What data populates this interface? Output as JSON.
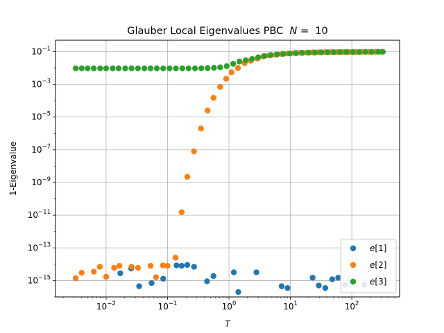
{
  "chart_data": {
    "type": "scatter",
    "title": "Glauber Local Eigenvalues PBC  N =  10",
    "title_parts": {
      "prefix": "Glauber Local Eigenvalues PBC  ",
      "var": "N",
      "suffix": " =  10"
    },
    "xlabel": "T",
    "ylabel": "1-Eigenvalue",
    "xscale": "log",
    "yscale": "log",
    "xlim": [
      0.0015,
      600
    ],
    "ylim": [
      1e-16,
      0.5
    ],
    "grid": true,
    "legend_placement": "lower right",
    "x_ticks": [
      {
        "value": 0.01,
        "base": "10",
        "exp": "−2"
      },
      {
        "value": 0.1,
        "base": "10",
        "exp": "−1"
      },
      {
        "value": 1,
        "base": "10",
        "exp": "0"
      },
      {
        "value": 10,
        "base": "10",
        "exp": "1"
      },
      {
        "value": 100,
        "base": "10",
        "exp": "2"
      }
    ],
    "y_ticks": [
      {
        "value": 1e-15,
        "base": "10",
        "exp": "−15"
      },
      {
        "value": 1e-13,
        "base": "10",
        "exp": "−13"
      },
      {
        "value": 1e-11,
        "base": "10",
        "exp": "−11"
      },
      {
        "value": 1e-09,
        "base": "10",
        "exp": "−9"
      },
      {
        "value": 1e-07,
        "base": "10",
        "exp": "−7"
      },
      {
        "value": 1e-05,
        "base": "10",
        "exp": "−5"
      },
      {
        "value": 0.001,
        "base": "10",
        "exp": "−3"
      },
      {
        "value": 0.1,
        "base": "10",
        "exp": "−1"
      }
    ],
    "series": [
      {
        "name": "e[1]",
        "legend_var": "e",
        "legend_index": "[1]",
        "color": "#1f77b4",
        "points": [
          [
            0.0256,
            5.5e-15
          ],
          [
            0.017,
            2.8e-15
          ],
          [
            0.0345,
            4.5e-16
          ],
          [
            0.055,
            7e-16
          ],
          [
            0.085,
            1.3e-15
          ],
          [
            0.14,
            8.5e-15
          ],
          [
            0.17,
            8e-15
          ],
          [
            0.21,
            9e-15
          ],
          [
            0.27,
            7e-15
          ],
          [
            0.44,
            9e-16
          ],
          [
            0.56,
            1.9e-15
          ],
          [
            1.2,
            3.2e-15
          ],
          [
            1.42,
            2e-16
          ],
          [
            2.8,
            3.2e-15
          ],
          [
            7.2,
            4.5e-16
          ],
          [
            9.0,
            3.5e-16
          ],
          [
            23,
            1.5e-15
          ],
          [
            29,
            5e-16
          ],
          [
            37,
            3.5e-16
          ],
          [
            48,
            1.2e-15
          ],
          [
            60,
            1.5e-15
          ],
          [
            77,
            5.5e-16
          ],
          [
            160,
            5.5e-16
          ]
        ]
      },
      {
        "name": "e[2]",
        "legend_var": "e",
        "legend_index": "[2]",
        "color": "#ff7f0e",
        "points": [
          [
            0.0032,
            1.4e-15
          ],
          [
            0.004,
            3e-15
          ],
          [
            0.0063,
            3.5e-15
          ],
          [
            0.0079,
            7e-15
          ],
          [
            0.01,
            1.7e-15
          ],
          [
            0.0135,
            6e-15
          ],
          [
            0.0165,
            8e-15
          ],
          [
            0.026,
            7e-15
          ],
          [
            0.033,
            6e-15
          ],
          [
            0.053,
            8e-15
          ],
          [
            0.065,
            1.6e-15
          ],
          [
            0.084,
            8.5e-15
          ],
          [
            0.1,
            8e-15
          ],
          [
            0.135,
            2.5e-14
          ],
          [
            0.17,
            1.5e-11
          ],
          [
            0.21,
            2.2e-09
          ],
          [
            0.27,
            8e-08
          ],
          [
            0.35,
            2e-06
          ],
          [
            0.45,
            2.5e-05
          ],
          [
            0.56,
            0.00015
          ],
          [
            0.72,
            0.0007
          ],
          [
            0.9,
            0.0022
          ],
          [
            1.1,
            0.0055
          ],
          [
            1.4,
            0.01
          ],
          [
            1.8,
            0.02
          ],
          [
            2.25,
            0.028
          ],
          [
            2.9,
            0.038
          ],
          [
            3.6,
            0.05
          ],
          [
            4.5,
            0.058
          ],
          [
            5.8,
            0.065
          ],
          [
            7.2,
            0.072
          ],
          [
            9,
            0.078
          ],
          [
            11.5,
            0.082
          ],
          [
            14.5,
            0.085
          ],
          [
            18.5,
            0.088
          ],
          [
            23,
            0.09
          ],
          [
            29,
            0.092
          ],
          [
            37,
            0.093
          ],
          [
            46,
            0.094
          ],
          [
            58,
            0.095
          ],
          [
            73,
            0.095
          ],
          [
            92,
            0.096
          ],
          [
            118,
            0.096
          ],
          [
            150,
            0.097
          ],
          [
            190,
            0.097
          ],
          [
            240,
            0.098
          ],
          [
            305,
            0.098
          ]
        ]
      },
      {
        "name": "e[3]",
        "legend_var": "e",
        "legend_index": "[3]",
        "color": "#2ca02c",
        "points": [
          [
            0.0032,
            0.0095
          ],
          [
            0.004,
            0.0095
          ],
          [
            0.005,
            0.0095
          ],
          [
            0.0063,
            0.0095
          ],
          [
            0.008,
            0.0095
          ],
          [
            0.01,
            0.0095
          ],
          [
            0.0128,
            0.0095
          ],
          [
            0.016,
            0.0095
          ],
          [
            0.0205,
            0.0095
          ],
          [
            0.026,
            0.0095
          ],
          [
            0.033,
            0.0095
          ],
          [
            0.042,
            0.0095
          ],
          [
            0.053,
            0.0095
          ],
          [
            0.067,
            0.0095
          ],
          [
            0.085,
            0.0095
          ],
          [
            0.108,
            0.0095
          ],
          [
            0.137,
            0.0095
          ],
          [
            0.174,
            0.0095
          ],
          [
            0.22,
            0.0095
          ],
          [
            0.28,
            0.0095
          ],
          [
            0.355,
            0.0096
          ],
          [
            0.45,
            0.0098
          ],
          [
            0.57,
            0.0102
          ],
          [
            0.72,
            0.011
          ],
          [
            0.92,
            0.013
          ],
          [
            1.17,
            0.018
          ],
          [
            1.48,
            0.025
          ],
          [
            1.88,
            0.03
          ],
          [
            2.38,
            0.036
          ],
          [
            3.0,
            0.045
          ],
          [
            3.8,
            0.055
          ],
          [
            4.8,
            0.062
          ],
          [
            6.1,
            0.068
          ],
          [
            7.7,
            0.073
          ],
          [
            9.8,
            0.077
          ],
          [
            12.4,
            0.081
          ],
          [
            15.7,
            0.084
          ],
          [
            19.9,
            0.087
          ],
          [
            25.2,
            0.089
          ],
          [
            31.9,
            0.091
          ],
          [
            40.4,
            0.092
          ],
          [
            51.2,
            0.093
          ],
          [
            64.8,
            0.094
          ],
          [
            82,
            0.095
          ],
          [
            104,
            0.095
          ],
          [
            132,
            0.096
          ],
          [
            167,
            0.097
          ],
          [
            211,
            0.097
          ],
          [
            268,
            0.098
          ],
          [
            320,
            0.098
          ]
        ]
      }
    ]
  }
}
